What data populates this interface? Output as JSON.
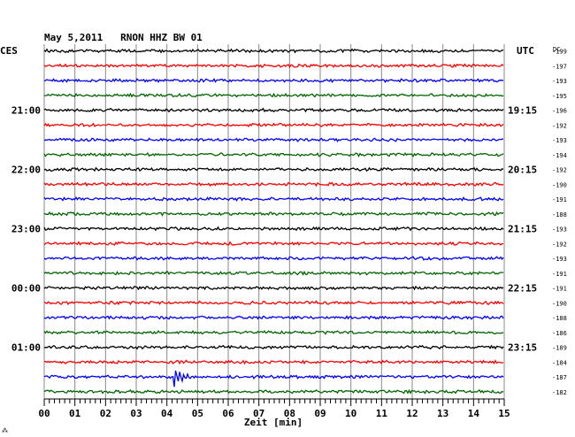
{
  "chart_data": {
    "type": "line",
    "title": "May 5,2011   RNON HHZ BW 01",
    "left_zone": "CES",
    "right_zone": "UTC",
    "dc_label": "DC",
    "xlabel": "Zeit [min]",
    "xlim": [
      0,
      15
    ],
    "x_ticks": [
      "00",
      "01",
      "02",
      "03",
      "04",
      "05",
      "06",
      "07",
      "08",
      "09",
      "10",
      "11",
      "12",
      "13",
      "14",
      "15"
    ],
    "trace_colors": [
      "#000000",
      "#ff0000",
      "#0000ff",
      "#006600"
    ],
    "traces_per_hour": 4,
    "left_hour_labels": [
      "21:00",
      "22:00",
      "23:00",
      "00:00",
      "01:00"
    ],
    "left_hour_label_start_trace": 4,
    "right_time_labels": [
      "19:15",
      "20:15",
      "21:15",
      "22:15",
      "23:15"
    ],
    "dc_offsets": [
      "-199",
      "-197",
      "-193",
      "-195",
      "-196",
      "-192",
      "-193",
      "-194",
      "-192",
      "-190",
      "-191",
      "-188",
      "-193",
      "-192",
      "-193",
      "-191",
      "-191",
      "-190",
      "-188",
      "-186",
      "-189",
      "-184",
      "-187",
      "-182"
    ],
    "event": {
      "trace": 22,
      "minute": 4.2,
      "note": "seismic event"
    },
    "footer_mark": "⁂"
  }
}
